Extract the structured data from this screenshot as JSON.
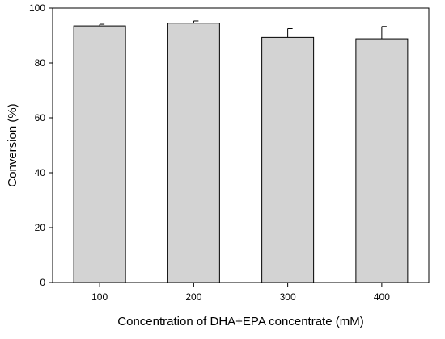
{
  "chart_data": {
    "type": "bar",
    "title": "",
    "xlabel": "Concentration of DHA+EPA concentrate (mM)",
    "ylabel": "Conversion (%)",
    "categories": [
      "100",
      "200",
      "300",
      "400"
    ],
    "values": [
      93.5,
      94.5,
      89.3,
      88.8
    ],
    "error": [
      0.6,
      0.8,
      3.2,
      4.5
    ],
    "ylim": [
      0,
      100
    ],
    "yticks": [
      0,
      20,
      40,
      60,
      80,
      100
    ],
    "ytick_labels": [
      "0",
      "20",
      "40",
      "60",
      "80",
      "100"
    ],
    "grid": false,
    "bar_color": "#d3d3d3",
    "edge_color": "#000000"
  }
}
